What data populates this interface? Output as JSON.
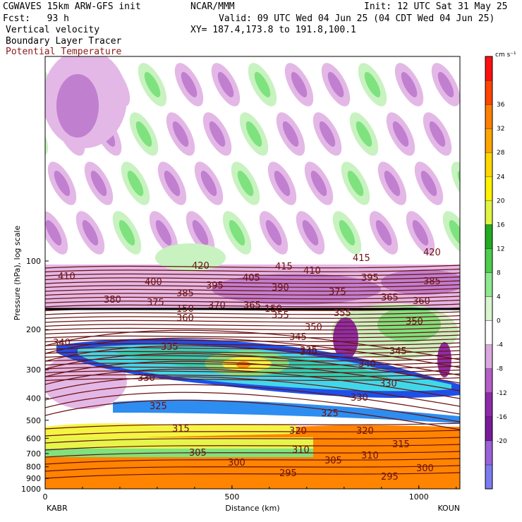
{
  "header": {
    "model": "CGWAVES 15km ARW-GFS init",
    "org": "NCAR/MMM",
    "init": "Init: 12 UTC Sat 31 May 25",
    "fcst": "Fcst:   93 h",
    "valid": "Valid: 09 UTC Wed 04 Jun 25 (04 CDT Wed 04 Jun 25)",
    "xy": "XY= 187.4,173.8 to 191.8,100.1",
    "field1": "Vertical velocity",
    "field2": "Boundary Layer Tracer",
    "field3": "Potential Temperature",
    "field3_color": "#8b1a1a"
  },
  "chart_data": {
    "type": "heatmap",
    "title": "Vertical velocity",
    "xlabel": "Distance (km)",
    "ylabel": "Pressure (hPa), log scale",
    "x_ticks": [
      "0",
      "500",
      "1000"
    ],
    "y_ticks": [
      "100",
      "200",
      "300",
      "400",
      "500",
      "600",
      "700",
      "800",
      "900",
      "1000"
    ],
    "left_station": "KABR",
    "right_station": "KOUN",
    "colorbar": {
      "unit": "cm s⁻¹",
      "levels": [
        -20,
        -16,
        -12,
        -8,
        -4,
        0,
        4,
        8,
        12,
        16,
        20,
        24,
        28,
        32,
        36
      ],
      "colors": [
        "#7b7bf0",
        "#9a62d8",
        "#7a1a9a",
        "#8c2aa8",
        "#b45ec6",
        "#d9a8de",
        "#ffffff",
        "#d8f5d0",
        "#8fe88f",
        "#4ccd4c",
        "#22aa22",
        "#dff542",
        "#fff200",
        "#ffd700",
        "#ffa500",
        "#ff7f00",
        "#ff4500",
        "#ff1010"
      ]
    },
    "theta_labels": [
      "410",
      "420",
      "415",
      "410",
      "415",
      "420",
      "400",
      "395",
      "405",
      "390",
      "375",
      "395",
      "385",
      "380",
      "385",
      "375",
      "370",
      "365",
      "365",
      "360",
      "360",
      "355",
      "355",
      "350",
      "350",
      "345",
      "345",
      "340",
      "340",
      "340",
      "335",
      "335",
      "330",
      "330",
      "330",
      "325",
      "325",
      "315",
      "320",
      "320",
      "315",
      "310",
      "310",
      "305",
      "305",
      "300",
      "300",
      "295",
      "295"
    ],
    "tropopause_label": "150",
    "tropopause_label2": "150"
  }
}
